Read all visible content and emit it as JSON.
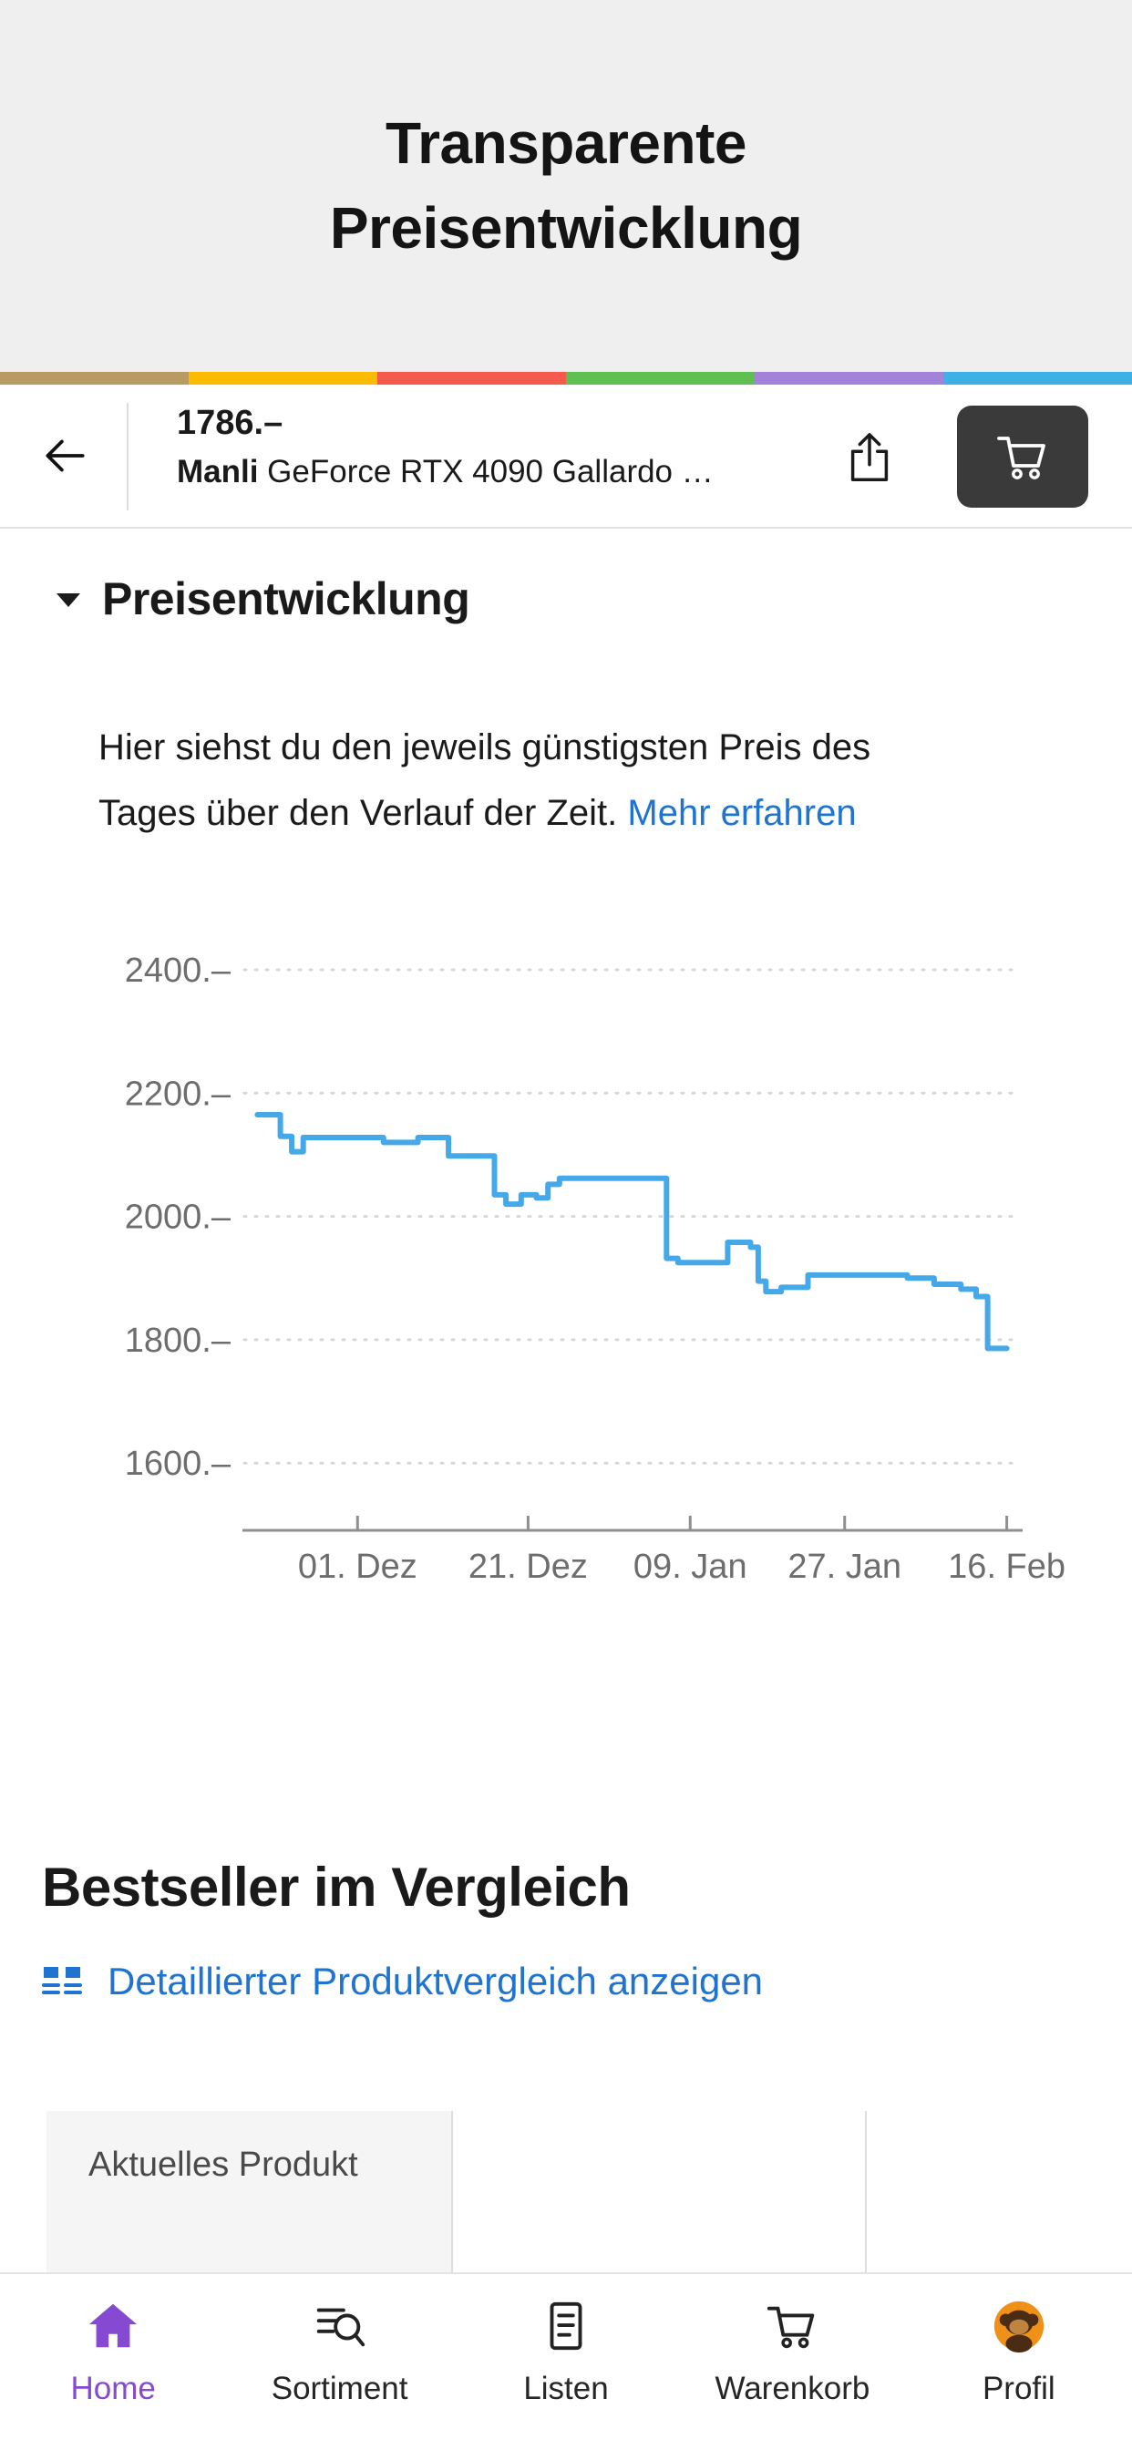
{
  "page_header": {
    "title_line1": "Transparente",
    "title_line2": "Preisentwicklung"
  },
  "brand_stripe": [
    "#b79b62",
    "#fbbc00",
    "#f45a4e",
    "#5fbf50",
    "#a383d9",
    "#3fb0e6"
  ],
  "product_bar": {
    "price": "1786.–",
    "brand": "Manli",
    "product_rest": " GeForce RTX 4090 Gallardo …"
  },
  "price_section": {
    "title": "Preisentwicklung",
    "description": "Hier siehst du den jeweils günstigsten Preis des Tages über den Verlauf der Zeit.",
    "link_label": "Mehr erfahren"
  },
  "chart_data": {
    "type": "line",
    "title": "Preisentwicklung",
    "grid": "dotted-horizontal",
    "line_color": "#45a8e8",
    "y_axis": {
      "ticks": [
        "2400.–",
        "2200.–",
        "2000.–",
        "1800.–",
        "1600.–"
      ],
      "values": [
        2400,
        2200,
        2000,
        1800,
        1600
      ]
    },
    "x_axis": {
      "ticks": [
        "01. Dez",
        "21. Dez",
        "09. Jan",
        "27. Jan",
        "16. Feb"
      ],
      "fractions": [
        0.141,
        0.364,
        0.576,
        0.778,
        0.99
      ]
    },
    "series": [
      {
        "step": true,
        "points": [
          [
            0.01,
            2165
          ],
          [
            0.04,
            2165
          ],
          [
            0.04,
            2130
          ],
          [
            0.055,
            2130
          ],
          [
            0.055,
            2105
          ],
          [
            0.07,
            2105
          ],
          [
            0.07,
            2128
          ],
          [
            0.175,
            2128
          ],
          [
            0.175,
            2120
          ],
          [
            0.22,
            2120
          ],
          [
            0.22,
            2128
          ],
          [
            0.26,
            2128
          ],
          [
            0.26,
            2098
          ],
          [
            0.32,
            2098
          ],
          [
            0.32,
            2035
          ],
          [
            0.335,
            2035
          ],
          [
            0.335,
            2020
          ],
          [
            0.355,
            2020
          ],
          [
            0.355,
            2035
          ],
          [
            0.375,
            2035
          ],
          [
            0.375,
            2030
          ],
          [
            0.39,
            2030
          ],
          [
            0.39,
            2052
          ],
          [
            0.405,
            2052
          ],
          [
            0.405,
            2062
          ],
          [
            0.545,
            2062
          ],
          [
            0.545,
            1932
          ],
          [
            0.56,
            1932
          ],
          [
            0.56,
            1925
          ],
          [
            0.625,
            1925
          ],
          [
            0.625,
            1958
          ],
          [
            0.655,
            1958
          ],
          [
            0.655,
            1950
          ],
          [
            0.665,
            1950
          ],
          [
            0.665,
            1895
          ],
          [
            0.675,
            1895
          ],
          [
            0.675,
            1878
          ],
          [
            0.695,
            1878
          ],
          [
            0.695,
            1885
          ],
          [
            0.73,
            1885
          ],
          [
            0.73,
            1905
          ],
          [
            0.86,
            1905
          ],
          [
            0.86,
            1900
          ],
          [
            0.895,
            1900
          ],
          [
            0.895,
            1890
          ],
          [
            0.93,
            1890
          ],
          [
            0.93,
            1882
          ],
          [
            0.95,
            1882
          ],
          [
            0.95,
            1870
          ],
          [
            0.965,
            1870
          ],
          [
            0.965,
            1786
          ],
          [
            0.99,
            1786
          ]
        ]
      }
    ]
  },
  "bestseller_section": {
    "title": "Bestseller im Vergleich",
    "compare_link_label": "Detaillierter Produktvergleich anzeigen",
    "table": {
      "first_cell": "Aktuelles Produkt"
    }
  },
  "tab_bar": {
    "items": [
      {
        "label": "Home",
        "active": true
      },
      {
        "label": "Sortiment",
        "active": false
      },
      {
        "label": "Listen",
        "active": false
      },
      {
        "label": "Warenkorb",
        "active": false
      },
      {
        "label": "Profil",
        "active": false
      }
    ]
  },
  "colors": {
    "link_blue": "#1e74d0",
    "chart_line_blue": "#45a8e8",
    "active_tab_purple": "#8549d2",
    "cart_button_dark": "#3a3a3a",
    "header_gray": "#efefef",
    "profile_orange": "#ef9018"
  }
}
